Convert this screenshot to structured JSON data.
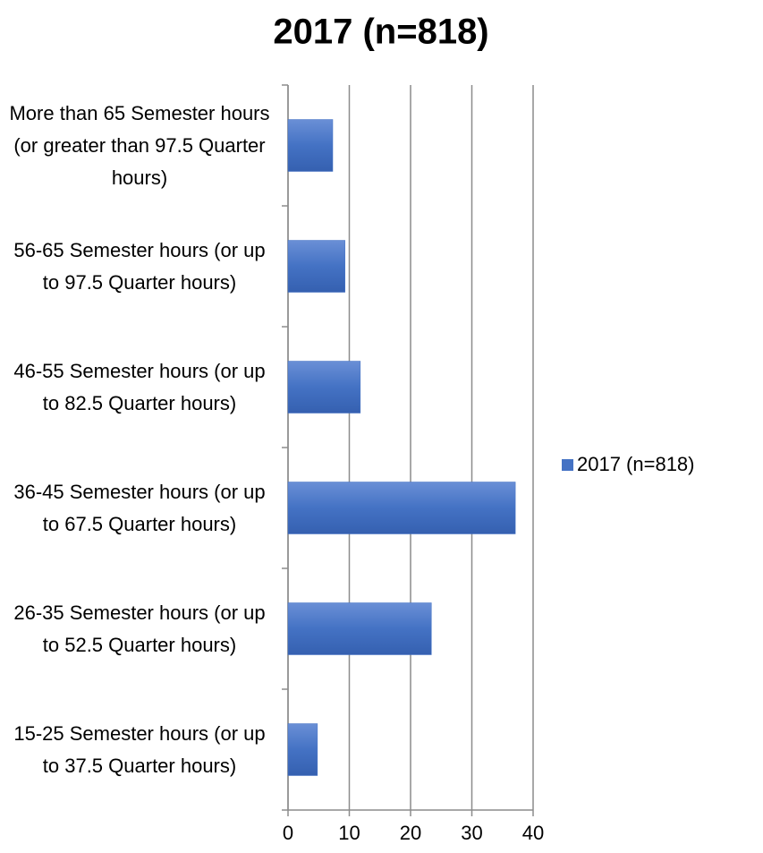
{
  "chart_data": {
    "type": "bar",
    "orientation": "horizontal",
    "title": "2017 (n=818)",
    "categories": [
      "More than 65 Semester hours (or greater than 97.5 Quarter hours)",
      "56-65 Semester hours (or up to 97.5 Quarter hours)",
      "46-55 Semester hours (or up to 82.5 Quarter hours)",
      "36-45 Semester hours (or up to 67.5 Quarter hours)",
      "26-35 Semester hours (or up to 52.5 Quarter hours)",
      "15-25 Semester hours (or up to 37.5 Quarter hours)"
    ],
    "series": [
      {
        "name": "2017 (n=818)",
        "color": "#4472c4",
        "values": [
          7.3,
          9.3,
          11.8,
          37.1,
          23.4,
          4.8
        ]
      }
    ],
    "xlim": [
      0,
      40
    ],
    "xticks": [
      0,
      10,
      20,
      30,
      40
    ],
    "grid": true,
    "legend": "right"
  }
}
